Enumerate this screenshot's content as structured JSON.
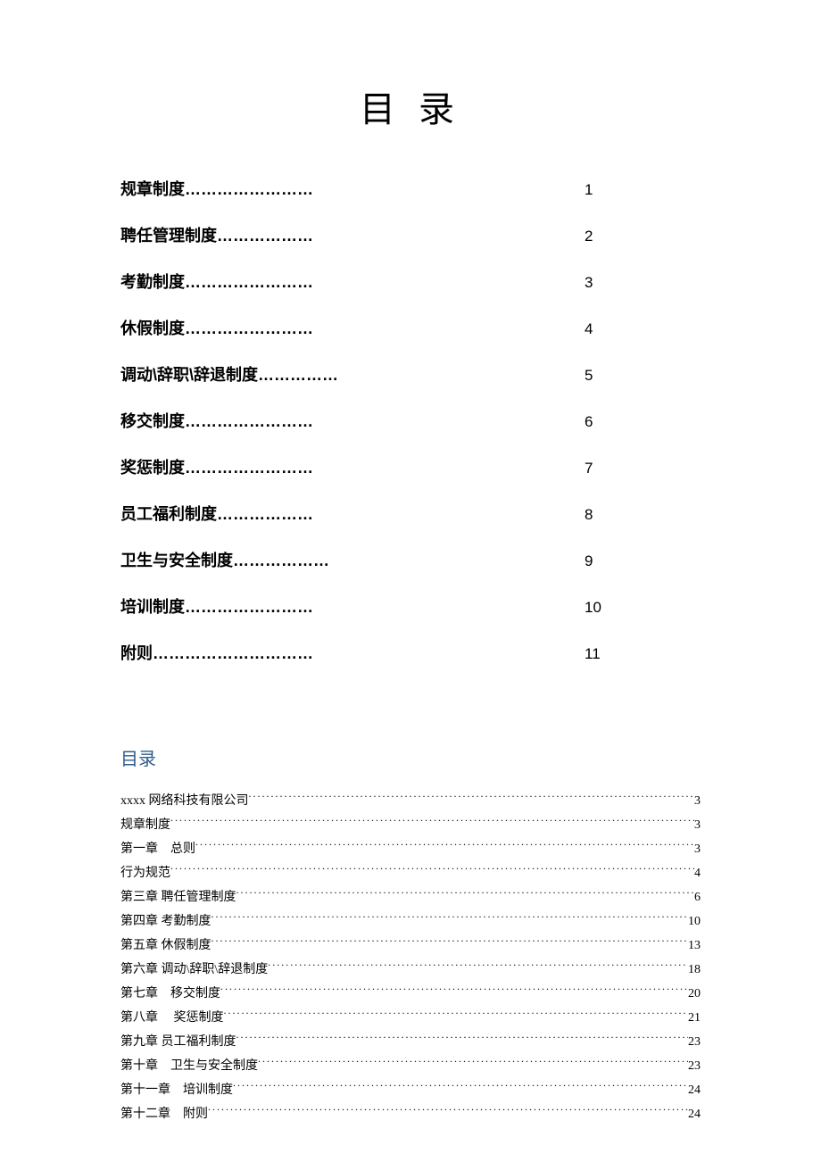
{
  "title": "目 录",
  "main_toc": {
    "items": [
      {
        "label": "规章制度",
        "dots": "……………………",
        "page": "1"
      },
      {
        "label": "聘任管理制度",
        "dots": "………………",
        "page": "2"
      },
      {
        "label": "考勤制度",
        "dots": "……………………",
        "page": "3"
      },
      {
        "label": "休假制度",
        "dots": "……………………",
        "page": "4"
      },
      {
        "label": "调动\\辞职\\辞退制度",
        "dots": "……………",
        "page": "5"
      },
      {
        "label": "移交制度",
        "dots": "……………………",
        "page": "6"
      },
      {
        "label": "奖惩制度",
        "dots": "……………………",
        "page": "7"
      },
      {
        "label": "员工福利制度",
        "dots": "………………",
        "page": "8"
      },
      {
        "label": "卫生与安全制度",
        "dots": "………………",
        "page": "9"
      },
      {
        "label": "培训制度",
        "dots": "……………………",
        "page": "10"
      },
      {
        "label": "附则",
        "dots": "…………………………",
        "page": "11"
      }
    ]
  },
  "sub_title": "目录",
  "sub_toc": {
    "items": [
      {
        "label": "xxxx 网络科技有限公司",
        "page": "3"
      },
      {
        "label": "规章制度",
        "page": "3"
      },
      {
        "label": "第一章　总则",
        "page": "3"
      },
      {
        "label": "行为规范",
        "page": "4"
      },
      {
        "label": "第三章 聘任管理制度",
        "page": "6"
      },
      {
        "label": "第四章 考勤制度",
        "page": "10"
      },
      {
        "label": "第五章 休假制度",
        "page": "13"
      },
      {
        "label": "第六章 调动\\辞职\\辞退制度 ",
        "page": "18"
      },
      {
        "label": "第七章　移交制度",
        "page": "20"
      },
      {
        "label": "第八章　 奖惩制度",
        "page": "21"
      },
      {
        "label": "第九章 员工福利制度",
        "page": "23"
      },
      {
        "label": "第十章　卫生与安全制度",
        "page": "23"
      },
      {
        "label": "第十一章　培训制度",
        "page": "24"
      },
      {
        "label": "第十二章　附则",
        "page": "24"
      }
    ]
  },
  "colors": {
    "background": "#ffffff",
    "text": "#000000",
    "sub_title": "#2e5c8a"
  },
  "typography": {
    "main_title_fontsize": 40,
    "main_toc_fontsize": 18,
    "sub_title_fontsize": 20,
    "sub_toc_fontsize": 14
  }
}
